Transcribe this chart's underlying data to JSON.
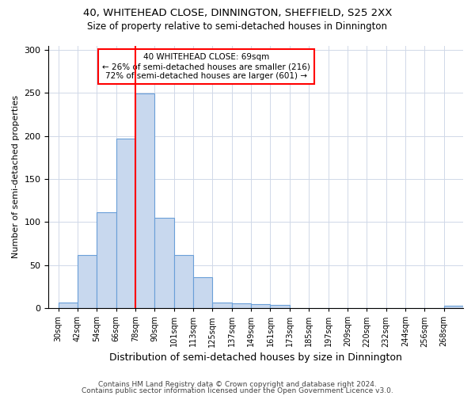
{
  "title1": "40, WHITEHEAD CLOSE, DINNINGTON, SHEFFIELD, S25 2XX",
  "title2": "Size of property relative to semi-detached houses in Dinnington",
  "xlabel": "Distribution of semi-detached houses by size in Dinnington",
  "ylabel": "Number of semi-detached properties",
  "categories": [
    "30sqm",
    "42sqm",
    "54sqm",
    "66sqm",
    "78sqm",
    "90sqm",
    "101sqm",
    "113sqm",
    "125sqm",
    "137sqm",
    "149sqm",
    "161sqm",
    "173sqm",
    "185sqm",
    "197sqm",
    "209sqm",
    "220sqm",
    "232sqm",
    "244sqm",
    "256sqm",
    "268sqm"
  ],
  "values": [
    7,
    62,
    111,
    197,
    249,
    105,
    62,
    36,
    7,
    6,
    5,
    4,
    0,
    0,
    0,
    0,
    0,
    0,
    0,
    0,
    3
  ],
  "bar_color": "#c8d8ee",
  "bar_edge_color": "#6a9fd8",
  "ylim": [
    0,
    305
  ],
  "yticks": [
    0,
    50,
    100,
    150,
    200,
    250,
    300
  ],
  "property_label": "40 WHITEHEAD CLOSE: 69sqm",
  "pct_smaller": 26,
  "count_smaller": 216,
  "pct_larger": 72,
  "count_larger": 601,
  "red_line_bin_index": 4,
  "footer1": "Contains HM Land Registry data © Crown copyright and database right 2024.",
  "footer2": "Contains public sector information licensed under the Open Government Licence v3.0.",
  "grid_color": "#d0d8e8",
  "background_color": "#ffffff",
  "bin_width": 12
}
